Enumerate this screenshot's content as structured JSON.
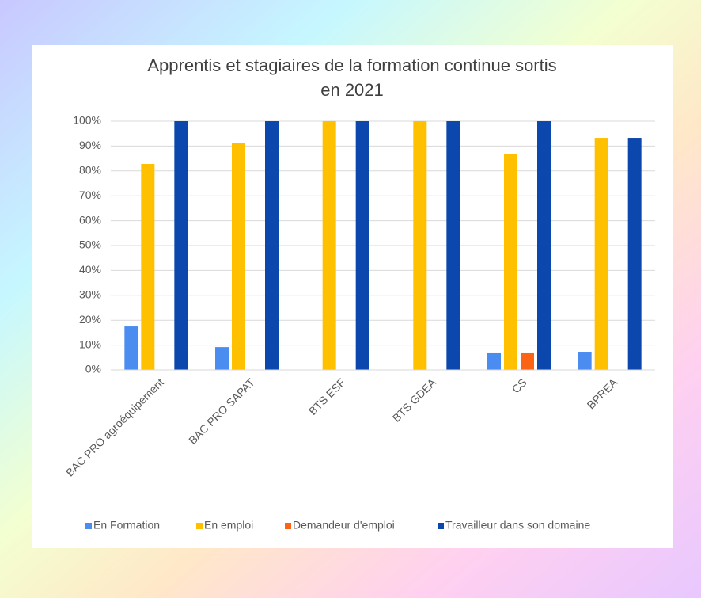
{
  "chart_data": {
    "type": "bar",
    "title": "Apprentis et stagiaires de la formation continue sortis en 2021",
    "categories": [
      "BAC PRO agroéquipement",
      "BAC PRO SAPAT",
      "BTS ESF",
      "BTS GDEA",
      "CS",
      "BPREA"
    ],
    "series": [
      {
        "name": "En Formation",
        "color": "#4a8cf0",
        "values": [
          17.5,
          9.2,
          0,
          0,
          6.7,
          7
        ]
      },
      {
        "name": "En emploi",
        "color": "#ffc000",
        "values": [
          82.8,
          91.4,
          100,
          100,
          86.9,
          93.3
        ]
      },
      {
        "name": "Demandeur d'emploi",
        "color": "#fb6414",
        "values": [
          0,
          0,
          0,
          0,
          6.7,
          0
        ]
      },
      {
        "name": "Travailleur dans son domaine",
        "color": "#0b47ad",
        "values": [
          100,
          100,
          100,
          100,
          100,
          93.3
        ]
      }
    ],
    "ylim": [
      0,
      100
    ],
    "yticks": [
      {
        "value": 0,
        "label": "0%"
      },
      {
        "value": 10,
        "label": "10%"
      },
      {
        "value": 20,
        "label": "20%"
      },
      {
        "value": 30,
        "label": "30%"
      },
      {
        "value": 40,
        "label": "40%"
      },
      {
        "value": 50,
        "label": "50%"
      },
      {
        "value": 60,
        "label": "60%"
      },
      {
        "value": 70,
        "label": "70%"
      },
      {
        "value": 80,
        "label": "80%"
      },
      {
        "value": 90,
        "label": "90%"
      },
      {
        "value": 100,
        "label": "100%"
      }
    ],
    "grid": true,
    "legend": "bottom"
  }
}
